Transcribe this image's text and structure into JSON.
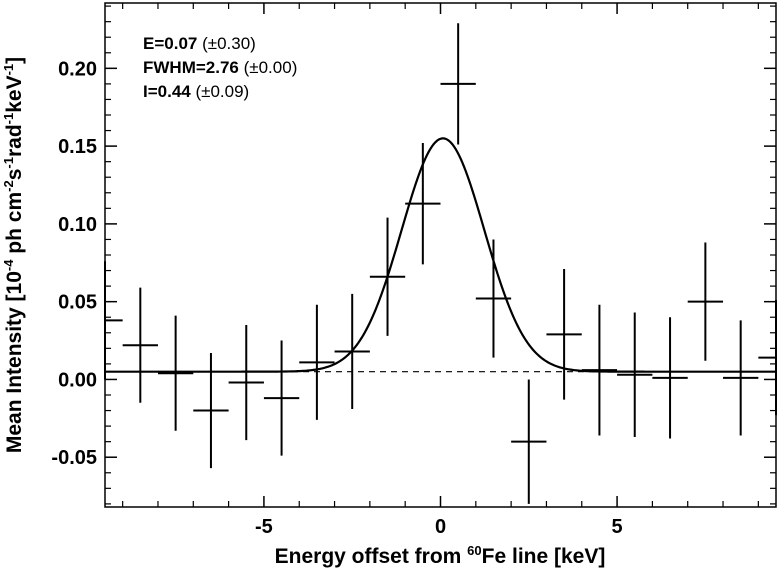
{
  "chart_data": {
    "type": "scatter",
    "xlabel": {
      "prefix": "Energy offset from ",
      "sup": "60",
      "suffix": "Fe line [keV]"
    },
    "ylabel": {
      "pre": "Mean Intensity [10",
      "sup1": "-4",
      "mid1": " ph cm",
      "sup2": "-2",
      "mid2": "s",
      "sup3": "-1",
      "mid3": "rad",
      "sup4": "-1",
      "mid4": "keV",
      "sup5": "-1",
      "post": "]"
    },
    "xlim": [
      -9.5,
      9.5
    ],
    "ylim": [
      -0.082,
      0.242
    ],
    "xticks": [
      {
        "v": -5,
        "label": "-5"
      },
      {
        "v": 0,
        "label": "0"
      },
      {
        "v": 5,
        "label": "5"
      }
    ],
    "yticks": [
      {
        "v": -0.05,
        "label": "-0.05"
      },
      {
        "v": 0.0,
        "label": "0.00"
      },
      {
        "v": 0.05,
        "label": "0.05"
      },
      {
        "v": 0.1,
        "label": "0.10"
      },
      {
        "v": 0.15,
        "label": "0.15"
      },
      {
        "v": 0.2,
        "label": "0.20"
      }
    ],
    "series": [
      {
        "type": "errorbar",
        "x": [
          -9.5,
          -8.5,
          -7.5,
          -6.5,
          -5.5,
          -4.5,
          -3.5,
          -2.5,
          -1.5,
          -0.5,
          0.5,
          1.5,
          2.5,
          3.5,
          4.5,
          5.5,
          6.5,
          7.5,
          8.5,
          9.5
        ],
        "y": [
          0.038,
          0.022,
          0.004,
          -0.02,
          -0.002,
          -0.012,
          0.011,
          0.018,
          0.066,
          0.113,
          0.19,
          0.052,
          -0.04,
          0.029,
          0.006,
          0.003,
          0.001,
          0.05,
          0.001,
          0.014
        ],
        "yerr": [
          0.038,
          0.037,
          0.037,
          0.037,
          0.037,
          0.037,
          0.037,
          0.037,
          0.038,
          0.039,
          0.039,
          0.038,
          0.04,
          0.042,
          0.042,
          0.04,
          0.039,
          0.038,
          0.037,
          0.037
        ],
        "xerr": 0.5
      },
      {
        "type": "line",
        "model": "gaussian",
        "center": 0.07,
        "fwhm": 2.76,
        "amplitude": 0.15,
        "baseline": 0.005
      },
      {
        "type": "dashed",
        "y": 0.005
      }
    ],
    "annotations": [
      {
        "bold": "E=0.07",
        "normal": " (±0.30)"
      },
      {
        "bold": "FWHM=2.76",
        "normal": " (±0.00)"
      },
      {
        "bold": "I=0.44",
        "normal": " (±0.09)"
      }
    ]
  }
}
